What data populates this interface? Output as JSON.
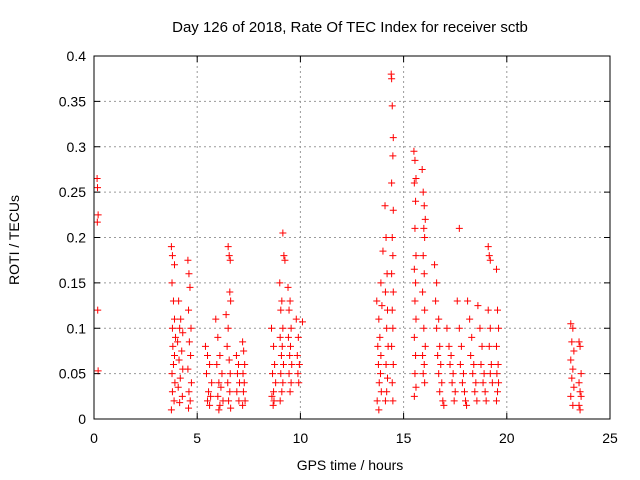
{
  "chart_data": {
    "type": "scatter",
    "title": "Day 126 of 2018, Rate Of TEC Index for receiver sctb",
    "xlabel": "GPS time / hours",
    "ylabel": "ROTI / TECUs",
    "xlim": [
      0,
      25
    ],
    "ylim": [
      0,
      0.4
    ],
    "xticks": [
      0,
      5,
      10,
      15,
      20,
      25
    ],
    "xtick_labels": [
      "0",
      "5",
      "10",
      "15",
      "20",
      "25"
    ],
    "yticks": [
      0,
      0.05,
      0.1,
      0.15,
      0.2,
      0.25,
      0.3,
      0.35,
      0.4
    ],
    "ytick_labels": [
      "0",
      "0.05",
      "0.1",
      "0.15",
      "0.2",
      "0.25",
      "0.3",
      "0.35",
      "0.4"
    ],
    "grid": true,
    "marker": "plus",
    "color": "#ff0000",
    "series": [
      {
        "name": "ROTI",
        "points": [
          [
            0.15,
            0.265
          ],
          [
            0.17,
            0.255
          ],
          [
            0.2,
            0.225
          ],
          [
            0.16,
            0.217
          ],
          [
            0.18,
            0.12
          ],
          [
            0.2,
            0.053
          ],
          [
            3.75,
            0.19
          ],
          [
            3.8,
            0.18
          ],
          [
            3.9,
            0.17
          ],
          [
            3.78,
            0.15
          ],
          [
            3.85,
            0.13
          ],
          [
            3.9,
            0.11
          ],
          [
            3.8,
            0.1
          ],
          [
            3.95,
            0.09
          ],
          [
            3.82,
            0.08
          ],
          [
            3.9,
            0.07
          ],
          [
            3.85,
            0.06
          ],
          [
            3.78,
            0.05
          ],
          [
            3.92,
            0.04
          ],
          [
            3.8,
            0.03
          ],
          [
            3.88,
            0.02
          ],
          [
            3.75,
            0.01
          ],
          [
            4.1,
            0.13
          ],
          [
            4.2,
            0.11
          ],
          [
            4.15,
            0.1
          ],
          [
            4.3,
            0.095
          ],
          [
            4.05,
            0.085
          ],
          [
            4.25,
            0.075
          ],
          [
            4.12,
            0.065
          ],
          [
            4.3,
            0.055
          ],
          [
            4.18,
            0.045
          ],
          [
            4.08,
            0.035
          ],
          [
            4.28,
            0.025
          ],
          [
            4.15,
            0.018
          ],
          [
            4.55,
            0.175
          ],
          [
            4.6,
            0.16
          ],
          [
            4.65,
            0.145
          ],
          [
            4.58,
            0.12
          ],
          [
            4.7,
            0.1
          ],
          [
            4.62,
            0.085
          ],
          [
            4.68,
            0.07
          ],
          [
            4.55,
            0.055
          ],
          [
            4.72,
            0.04
          ],
          [
            4.6,
            0.03
          ],
          [
            4.66,
            0.02
          ],
          [
            4.58,
            0.012
          ],
          [
            5.4,
            0.08
          ],
          [
            5.5,
            0.07
          ],
          [
            5.6,
            0.06
          ],
          [
            5.45,
            0.05
          ],
          [
            5.7,
            0.04
          ],
          [
            5.55,
            0.03
          ],
          [
            5.65,
            0.025
          ],
          [
            5.5,
            0.02
          ],
          [
            5.6,
            0.015
          ],
          [
            5.9,
            0.11
          ],
          [
            6.0,
            0.09
          ],
          [
            6.1,
            0.07
          ],
          [
            5.95,
            0.06
          ],
          [
            6.2,
            0.05
          ],
          [
            6.05,
            0.04
          ],
          [
            6.15,
            0.035
          ],
          [
            6.0,
            0.025
          ],
          [
            6.25,
            0.02
          ],
          [
            6.1,
            0.015
          ],
          [
            6.05,
            0.01
          ],
          [
            6.4,
            0.115
          ],
          [
            6.5,
            0.1
          ],
          [
            6.45,
            0.08
          ],
          [
            6.55,
            0.065
          ],
          [
            6.6,
            0.05
          ],
          [
            6.48,
            0.04
          ],
          [
            6.58,
            0.03
          ],
          [
            6.52,
            0.02
          ],
          [
            6.62,
            0.012
          ],
          [
            6.5,
            0.19
          ],
          [
            6.55,
            0.18
          ],
          [
            6.6,
            0.175
          ],
          [
            6.58,
            0.14
          ],
          [
            6.62,
            0.13
          ],
          [
            6.9,
            0.07
          ],
          [
            7.0,
            0.06
          ],
          [
            6.95,
            0.05
          ],
          [
            7.05,
            0.04
          ],
          [
            6.92,
            0.03
          ],
          [
            7.02,
            0.02
          ],
          [
            7.2,
            0.085
          ],
          [
            7.25,
            0.075
          ],
          [
            7.3,
            0.06
          ],
          [
            7.22,
            0.05
          ],
          [
            7.28,
            0.04
          ],
          [
            7.24,
            0.03
          ],
          [
            7.32,
            0.02
          ],
          [
            7.2,
            0.015
          ],
          [
            8.6,
            0.1
          ],
          [
            8.7,
            0.08
          ],
          [
            8.75,
            0.06
          ],
          [
            8.65,
            0.05
          ],
          [
            8.8,
            0.04
          ],
          [
            8.7,
            0.03
          ],
          [
            8.62,
            0.025
          ],
          [
            8.72,
            0.02
          ],
          [
            8.68,
            0.015
          ],
          [
            9.0,
            0.15
          ],
          [
            9.1,
            0.13
          ],
          [
            9.05,
            0.12
          ],
          [
            9.15,
            0.1
          ],
          [
            9.02,
            0.09
          ],
          [
            9.12,
            0.08
          ],
          [
            9.08,
            0.07
          ],
          [
            9.18,
            0.06
          ],
          [
            9.05,
            0.05
          ],
          [
            9.15,
            0.04
          ],
          [
            9.1,
            0.03
          ],
          [
            9.02,
            0.02
          ],
          [
            9.15,
            0.205
          ],
          [
            9.2,
            0.18
          ],
          [
            9.25,
            0.175
          ],
          [
            9.4,
            0.145
          ],
          [
            9.5,
            0.13
          ],
          [
            9.45,
            0.12
          ],
          [
            9.55,
            0.1
          ],
          [
            9.42,
            0.09
          ],
          [
            9.52,
            0.08
          ],
          [
            9.48,
            0.07
          ],
          [
            9.58,
            0.06
          ],
          [
            9.45,
            0.05
          ],
          [
            9.55,
            0.04
          ],
          [
            9.5,
            0.03
          ],
          [
            9.8,
            0.11
          ],
          [
            9.9,
            0.09
          ],
          [
            9.85,
            0.07
          ],
          [
            9.95,
            0.06
          ],
          [
            9.88,
            0.05
          ],
          [
            9.92,
            0.04
          ],
          [
            10.1,
            0.107
          ],
          [
            13.7,
            0.13
          ],
          [
            13.8,
            0.11
          ],
          [
            13.85,
            0.09
          ],
          [
            13.75,
            0.08
          ],
          [
            13.9,
            0.07
          ],
          [
            13.78,
            0.06
          ],
          [
            13.88,
            0.05
          ],
          [
            13.82,
            0.04
          ],
          [
            13.92,
            0.03
          ],
          [
            13.72,
            0.02
          ],
          [
            13.8,
            0.01
          ],
          [
            13.9,
            0.15
          ],
          [
            13.95,
            0.125
          ],
          [
            14.0,
            0.185
          ],
          [
            14.1,
            0.235
          ],
          [
            14.15,
            0.2
          ],
          [
            14.2,
            0.16
          ],
          [
            14.12,
            0.14
          ],
          [
            14.22,
            0.12
          ],
          [
            14.18,
            0.1
          ],
          [
            14.25,
            0.08
          ],
          [
            14.15,
            0.06
          ],
          [
            14.22,
            0.045
          ],
          [
            14.18,
            0.03
          ],
          [
            14.12,
            0.02
          ],
          [
            14.4,
            0.38
          ],
          [
            14.42,
            0.375
          ],
          [
            14.45,
            0.345
          ],
          [
            14.5,
            0.31
          ],
          [
            14.48,
            0.29
          ],
          [
            14.42,
            0.26
          ],
          [
            14.5,
            0.23
          ],
          [
            14.45,
            0.2
          ],
          [
            14.48,
            0.18
          ],
          [
            14.42,
            0.16
          ],
          [
            14.5,
            0.14
          ],
          [
            14.45,
            0.12
          ],
          [
            14.48,
            0.1
          ],
          [
            14.42,
            0.08
          ],
          [
            14.5,
            0.06
          ],
          [
            14.45,
            0.04
          ],
          [
            14.48,
            0.02
          ],
          [
            15.5,
            0.295
          ],
          [
            15.55,
            0.285
          ],
          [
            15.6,
            0.265
          ],
          [
            15.52,
            0.26
          ],
          [
            15.58,
            0.24
          ],
          [
            15.55,
            0.21
          ],
          [
            15.6,
            0.18
          ],
          [
            15.52,
            0.165
          ],
          [
            15.58,
            0.15
          ],
          [
            15.55,
            0.13
          ],
          [
            15.6,
            0.11
          ],
          [
            15.52,
            0.09
          ],
          [
            15.58,
            0.07
          ],
          [
            15.55,
            0.05
          ],
          [
            15.6,
            0.035
          ],
          [
            15.52,
            0.025
          ],
          [
            15.9,
            0.275
          ],
          [
            15.95,
            0.25
          ],
          [
            16.0,
            0.235
          ],
          [
            16.05,
            0.22
          ],
          [
            15.98,
            0.21
          ],
          [
            16.02,
            0.2
          ],
          [
            15.95,
            0.18
          ],
          [
            16.0,
            0.16
          ],
          [
            15.92,
            0.14
          ],
          [
            16.02,
            0.12
          ],
          [
            15.98,
            0.1
          ],
          [
            16.05,
            0.08
          ],
          [
            15.92,
            0.07
          ],
          [
            16.0,
            0.06
          ],
          [
            15.95,
            0.05
          ],
          [
            16.02,
            0.04
          ],
          [
            16.5,
            0.17
          ],
          [
            16.6,
            0.15
          ],
          [
            16.55,
            0.13
          ],
          [
            16.7,
            0.11
          ],
          [
            16.6,
            0.1
          ],
          [
            16.75,
            0.08
          ],
          [
            16.65,
            0.07
          ],
          [
            16.8,
            0.06
          ],
          [
            16.7,
            0.05
          ],
          [
            16.85,
            0.04
          ],
          [
            16.75,
            0.03
          ],
          [
            16.9,
            0.02
          ],
          [
            16.95,
            0.015
          ],
          [
            17.1,
            0.1
          ],
          [
            17.2,
            0.08
          ],
          [
            17.3,
            0.07
          ],
          [
            17.25,
            0.06
          ],
          [
            17.4,
            0.05
          ],
          [
            17.35,
            0.04
          ],
          [
            17.5,
            0.03
          ],
          [
            17.45,
            0.02
          ],
          [
            17.7,
            0.21
          ],
          [
            17.6,
            0.13
          ],
          [
            17.7,
            0.1
          ],
          [
            17.8,
            0.08
          ],
          [
            17.75,
            0.06
          ],
          [
            17.9,
            0.05
          ],
          [
            17.85,
            0.04
          ],
          [
            17.95,
            0.03
          ],
          [
            18.0,
            0.02
          ],
          [
            18.05,
            0.015
          ],
          [
            18.1,
            0.13
          ],
          [
            18.2,
            0.11
          ],
          [
            18.3,
            0.09
          ],
          [
            18.25,
            0.07
          ],
          [
            18.4,
            0.06
          ],
          [
            18.35,
            0.05
          ],
          [
            18.5,
            0.04
          ],
          [
            18.45,
            0.03
          ],
          [
            18.55,
            0.02
          ],
          [
            18.6,
            0.125
          ],
          [
            18.7,
            0.1
          ],
          [
            18.8,
            0.08
          ],
          [
            18.75,
            0.06
          ],
          [
            18.9,
            0.05
          ],
          [
            18.85,
            0.04
          ],
          [
            18.95,
            0.03
          ],
          [
            19.0,
            0.02
          ],
          [
            19.1,
            0.19
          ],
          [
            19.15,
            0.18
          ],
          [
            19.2,
            0.175
          ],
          [
            19.1,
            0.12
          ],
          [
            19.2,
            0.1
          ],
          [
            19.15,
            0.08
          ],
          [
            19.25,
            0.06
          ],
          [
            19.2,
            0.05
          ],
          [
            19.3,
            0.04
          ],
          [
            19.5,
            0.165
          ],
          [
            19.55,
            0.12
          ],
          [
            19.6,
            0.1
          ],
          [
            19.5,
            0.08
          ],
          [
            19.58,
            0.06
          ],
          [
            19.52,
            0.05
          ],
          [
            19.6,
            0.04
          ],
          [
            19.55,
            0.03
          ],
          [
            19.5,
            0.02
          ],
          [
            23.1,
            0.105
          ],
          [
            23.2,
            0.1
          ],
          [
            23.15,
            0.085
          ],
          [
            23.25,
            0.075
          ],
          [
            23.1,
            0.065
          ],
          [
            23.2,
            0.055
          ],
          [
            23.15,
            0.045
          ],
          [
            23.25,
            0.035
          ],
          [
            23.1,
            0.025
          ],
          [
            23.2,
            0.015
          ],
          [
            23.5,
            0.085
          ],
          [
            23.55,
            0.08
          ],
          [
            23.6,
            0.05
          ],
          [
            23.5,
            0.04
          ],
          [
            23.55,
            0.03
          ],
          [
            23.6,
            0.025
          ],
          [
            23.5,
            0.015
          ],
          [
            23.55,
            0.01
          ]
        ]
      }
    ]
  }
}
